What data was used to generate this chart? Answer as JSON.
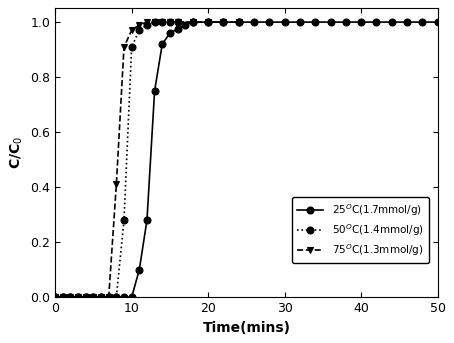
{
  "series": [
    {
      "label": "25$^O$C(1.7mmol/g)",
      "linestyle": "-",
      "marker": "o",
      "color": "black",
      "markersize": 5,
      "x": [
        0,
        1,
        2,
        3,
        4,
        5,
        6,
        7,
        8,
        9,
        10,
        11,
        12,
        13,
        14,
        15,
        16,
        17,
        18,
        20,
        22,
        24,
        26,
        28,
        30,
        32,
        34,
        36,
        38,
        40,
        42,
        44,
        46,
        48,
        50
      ],
      "y": [
        0.0,
        0.0,
        0.0,
        0.0,
        0.0,
        0.0,
        0.0,
        0.0,
        0.0,
        0.0,
        0.0,
        0.1,
        0.28,
        0.75,
        0.92,
        0.96,
        0.975,
        0.99,
        1.0,
        1.0,
        1.0,
        1.0,
        1.0,
        1.0,
        1.0,
        1.0,
        1.0,
        1.0,
        1.0,
        1.0,
        1.0,
        1.0,
        1.0,
        1.0,
        1.0
      ]
    },
    {
      "label": "50$^O$C(1.4mmol/g)",
      "linestyle": ":",
      "marker": "o",
      "color": "black",
      "markersize": 5,
      "x": [
        0,
        1,
        2,
        3,
        4,
        5,
        6,
        7,
        8,
        9,
        10,
        11,
        12,
        13,
        14,
        15,
        16,
        18,
        20,
        22,
        24
      ],
      "y": [
        0.0,
        0.0,
        0.0,
        0.0,
        0.0,
        0.0,
        0.0,
        0.0,
        0.0,
        0.28,
        0.91,
        0.97,
        0.99,
        1.0,
        1.0,
        1.0,
        1.0,
        1.0,
        1.0,
        1.0,
        1.0
      ]
    },
    {
      "label": "75$^O$C(1.3mmol/g)",
      "linestyle": "--",
      "marker": "v",
      "color": "black",
      "markersize": 5,
      "x": [
        0,
        1,
        2,
        3,
        4,
        5,
        6,
        7,
        8,
        9,
        10,
        11,
        12,
        13,
        14,
        15,
        16,
        18,
        20,
        22,
        24
      ],
      "y": [
        0.0,
        0.0,
        0.0,
        0.0,
        0.0,
        0.0,
        0.0,
        0.0,
        0.41,
        0.91,
        0.97,
        0.99,
        1.0,
        1.0,
        1.0,
        1.0,
        1.0,
        1.0,
        1.0,
        1.0,
        1.0
      ]
    }
  ],
  "xlabel": "Time(mins)",
  "ylabel": "C/C$_0$",
  "xlim": [
    0,
    50
  ],
  "ylim": [
    0.0,
    1.05
  ],
  "xticks": [
    0,
    10,
    20,
    30,
    40,
    50
  ],
  "yticks": [
    0.0,
    0.2,
    0.4,
    0.6,
    0.8,
    1.0
  ],
  "background_color": "#ffffff"
}
